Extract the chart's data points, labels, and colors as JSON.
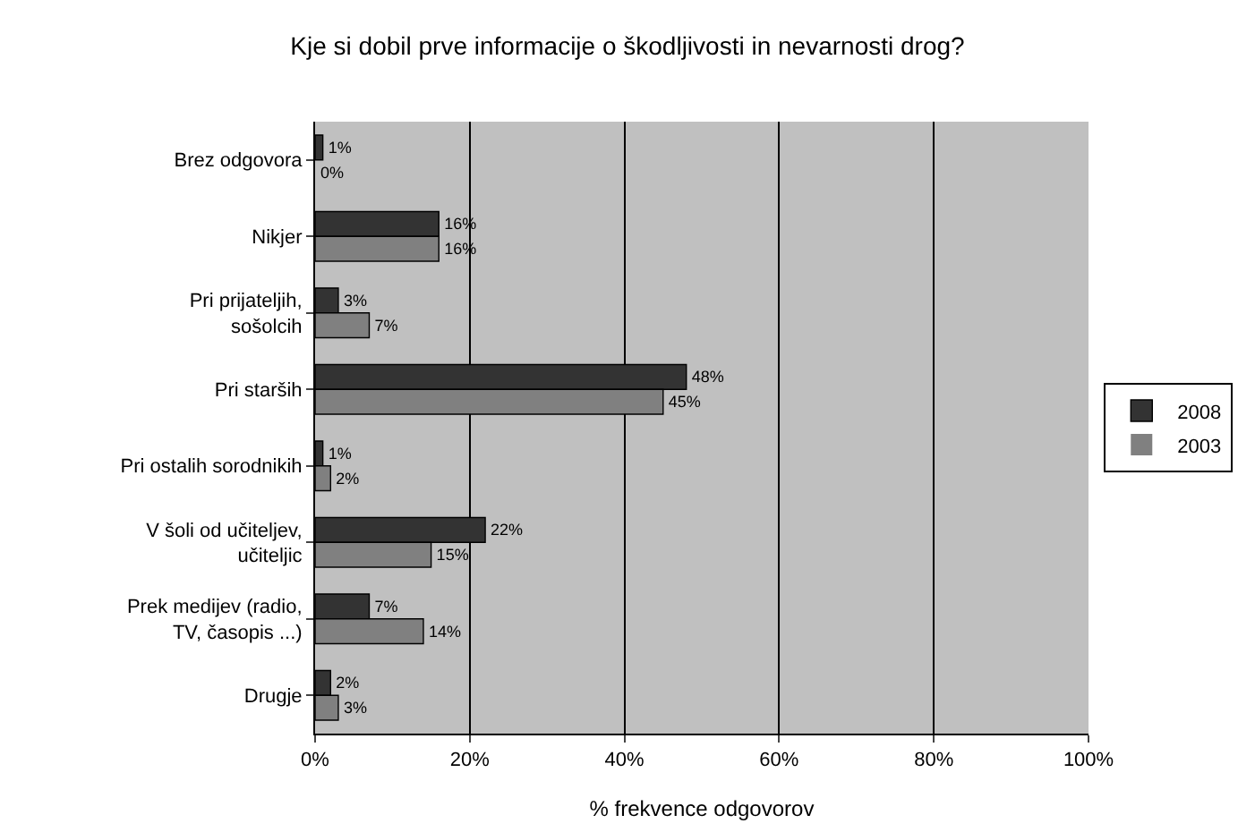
{
  "chart_data": {
    "type": "bar",
    "orientation": "horizontal",
    "title": "Kje si dobil prve informacije o škodljivosti in nevarnosti drog?",
    "xlabel": "% frekvence odgovorov",
    "categories": [
      "Brez odgovora",
      "Nikjer",
      "Pri prijateljih, sošolcih",
      "Pri starših",
      "Pri ostalih sorodnikih",
      "V šoli od učiteljev, učiteljic",
      "Prek medijev (radio, TV, časopis ...)",
      "Drugje"
    ],
    "series": [
      {
        "name": "2008",
        "color": "#333333",
        "values": [
          1,
          16,
          3,
          48,
          1,
          22,
          7,
          2
        ],
        "value_labels": [
          "1%",
          "16%",
          "3%",
          "48%",
          "1%",
          "22%",
          "7%",
          "2%"
        ]
      },
      {
        "name": "2003",
        "color": "#808080",
        "values": [
          0,
          16,
          7,
          45,
          2,
          15,
          14,
          3
        ],
        "value_labels": [
          "0%",
          "16%",
          "7%",
          "45%",
          "2%",
          "15%",
          "14%",
          "3%"
        ]
      }
    ],
    "xlim": [
      0,
      100
    ],
    "xticks": [
      {
        "value": 0,
        "label": "0%"
      },
      {
        "value": 20,
        "label": "20%"
      },
      {
        "value": 40,
        "label": "40%"
      },
      {
        "value": 60,
        "label": "60%"
      },
      {
        "value": 80,
        "label": "80%"
      },
      {
        "value": 100,
        "label": "100%"
      }
    ],
    "grid": "x",
    "legend": "right"
  }
}
